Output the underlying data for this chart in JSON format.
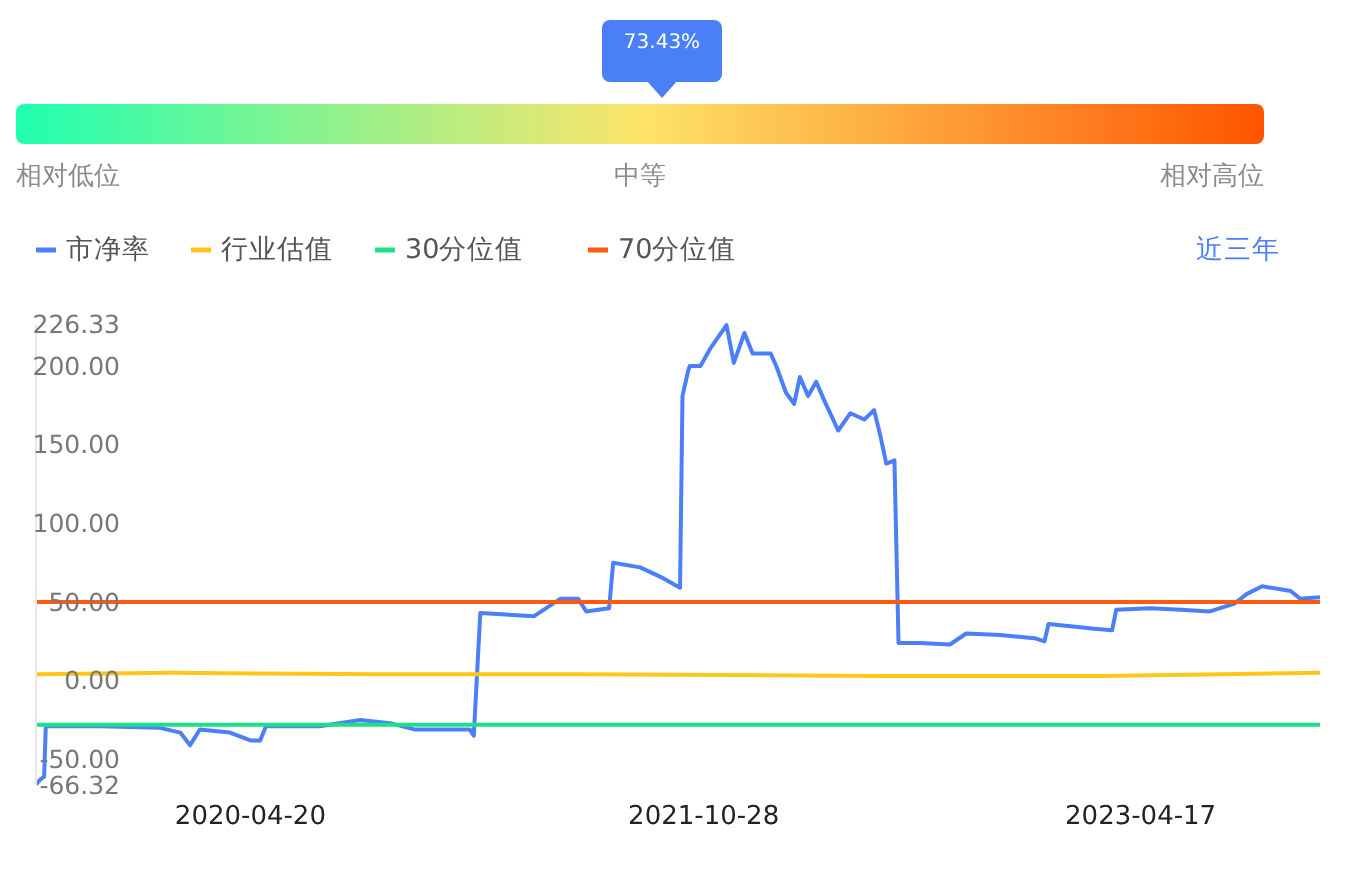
{
  "chart_data": [
    {
      "type": "other",
      "categories": [
        "相对低位",
        "中等",
        "相对高位"
      ],
      "colors": [
        "#1fffb0",
        "#fde46a",
        "#ff5400"
      ],
      "annotations": [
        "73.43%"
      ]
    },
    {
      "type": "line",
      "legend": "top left",
      "annotations": [
        "近三年"
      ],
      "xlim": [
        "2019-08-01",
        "2023-11-23"
      ],
      "xticks": [
        "2020-04-20",
        "2021-10-28",
        "2023-04-17"
      ],
      "ylim": [
        -66.32,
        226.33
      ],
      "yticks": [
        {
          "value": 226.33,
          "label": "226.33"
        },
        {
          "value": 200,
          "label": "200.00"
        },
        {
          "value": 150,
          "label": "150.00"
        },
        {
          "value": 100,
          "label": "100.00"
        },
        {
          "value": 50,
          "label": "50.00"
        },
        {
          "value": 0,
          "label": "0.00"
        },
        {
          "value": -50,
          "label": "-50.00"
        },
        {
          "value": -66.32,
          "label": "-66.32"
        }
      ],
      "series": [
        {
          "name": "市净率",
          "color": "#4a7ff7",
          "x": [
            "2019-08-01",
            "2019-08-06",
            "2019-08-11",
            "2019-08-13",
            "2019-10-19",
            "2019-12-31",
            "2020-01-25",
            "2020-02-06",
            "2020-02-18",
            "2020-03-26",
            "2020-04-20",
            "2020-05-02",
            "2020-05-09",
            "2020-07-14",
            "2020-09-02",
            "2020-10-08",
            "2020-11-07",
            "2021-01-14",
            "2021-01-19",
            "2021-01-27",
            "2021-04-03",
            "2021-05-05",
            "2021-05-27",
            "2021-06-06",
            "2021-07-04",
            "2021-07-09",
            "2021-08-11",
            "2021-09-05",
            "2021-09-29",
            "2021-10-02",
            "2021-10-09",
            "2021-10-11",
            "2021-10-24",
            "2021-11-05",
            "2021-11-25",
            "2021-12-04",
            "2021-12-17",
            "2021-12-27",
            "2022-01-18",
            "2022-01-25",
            "2022-02-06",
            "2022-02-16",
            "2022-02-23",
            "2022-03-05",
            "2022-03-15",
            "2022-03-25",
            "2022-04-11",
            "2022-04-26",
            "2022-05-13",
            "2022-05-25",
            "2022-06-02",
            "2022-06-09",
            "2022-06-19",
            "2022-06-24",
            "2022-07-21",
            "2022-08-26",
            "2022-09-15",
            "2022-10-27",
            "2022-12-08",
            "2022-12-20",
            "2022-12-25",
            "2023-02-02",
            "2023-02-19",
            "2023-03-13",
            "2023-03-18",
            "2023-04-29",
            "2023-06-05",
            "2023-07-11",
            "2023-08-10",
            "2023-08-25",
            "2023-09-13",
            "2023-10-18",
            "2023-10-30",
            "2023-11-23"
          ],
          "values": [
            -66,
            -63,
            -61,
            -29,
            -29,
            -30,
            -33,
            -41,
            -31,
            -33,
            -38,
            -38,
            -29,
            -29,
            -25,
            -27,
            -31,
            -31,
            -35,
            43,
            41,
            52,
            52,
            44,
            46,
            75,
            72,
            66,
            59,
            181,
            197,
            200,
            200,
            211,
            226,
            202,
            221,
            208,
            208,
            200,
            183,
            176,
            193,
            181,
            190,
            178,
            159,
            170,
            166,
            172,
            155,
            138,
            140,
            24,
            24,
            23,
            30,
            29,
            27,
            25,
            36,
            34,
            33,
            32,
            45,
            46,
            45,
            44,
            49,
            55,
            60,
            57,
            52,
            53
          ]
        },
        {
          "name": "行业估值",
          "color": "#ffc61a",
          "x": [
            "2019-08-01",
            "2020-01-15",
            "2020-10-01",
            "2021-06-01",
            "2022-06-01",
            "2023-03-01",
            "2023-11-23"
          ],
          "values": [
            4,
            5,
            4,
            4,
            3,
            3,
            5
          ]
        },
        {
          "name": "30分位值",
          "color": "#1edf88",
          "x": [
            "2019-08-01",
            "2023-11-23"
          ],
          "values": [
            -28,
            -28
          ]
        },
        {
          "name": "70分位值",
          "color": "#ff5a10",
          "x": [
            "2019-08-01",
            "2023-11-23"
          ],
          "values": [
            50,
            50
          ]
        }
      ]
    }
  ]
}
